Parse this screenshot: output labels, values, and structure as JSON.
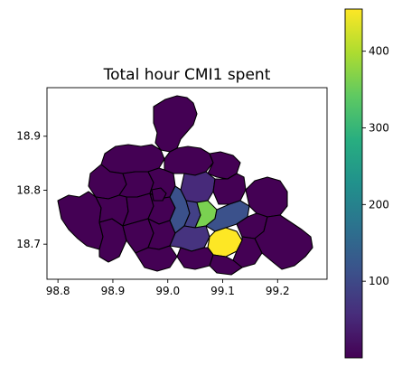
{
  "chart_data": {
    "type": "choropleth",
    "title": "Total hour CMI1 spent",
    "xlabel": "",
    "ylabel": "",
    "xlim": [
      98.78,
      99.29
    ],
    "ylim": [
      18.635,
      18.99
    ],
    "x_ticks": [
      "98.8",
      "98.9",
      "99.0",
      "99.1",
      "99.2"
    ],
    "x_tick_values": [
      98.8,
      98.9,
      99.0,
      99.1,
      99.2
    ],
    "y_ticks": [
      "18.7",
      "18.8",
      "18.9"
    ],
    "y_tick_values": [
      18.7,
      18.8,
      18.9
    ],
    "colorbar": {
      "colormap": "viridis",
      "range": [
        0,
        455
      ],
      "ticks": [
        "100",
        "200",
        "300",
        "400"
      ],
      "tick_values": [
        100,
        200,
        300,
        400
      ]
    },
    "regions": [
      {
        "value": 455,
        "color": "#fde725"
      },
      {
        "value": 330,
        "color": "#7ad151"
      },
      {
        "value": 90,
        "color": "#3b518b"
      },
      {
        "value": 75,
        "color": "#424086"
      },
      {
        "value": 65,
        "color": "#46337f"
      },
      {
        "value": 55,
        "color": "#472a7a"
      },
      {
        "value": 5,
        "color": "#440154"
      }
    ]
  }
}
